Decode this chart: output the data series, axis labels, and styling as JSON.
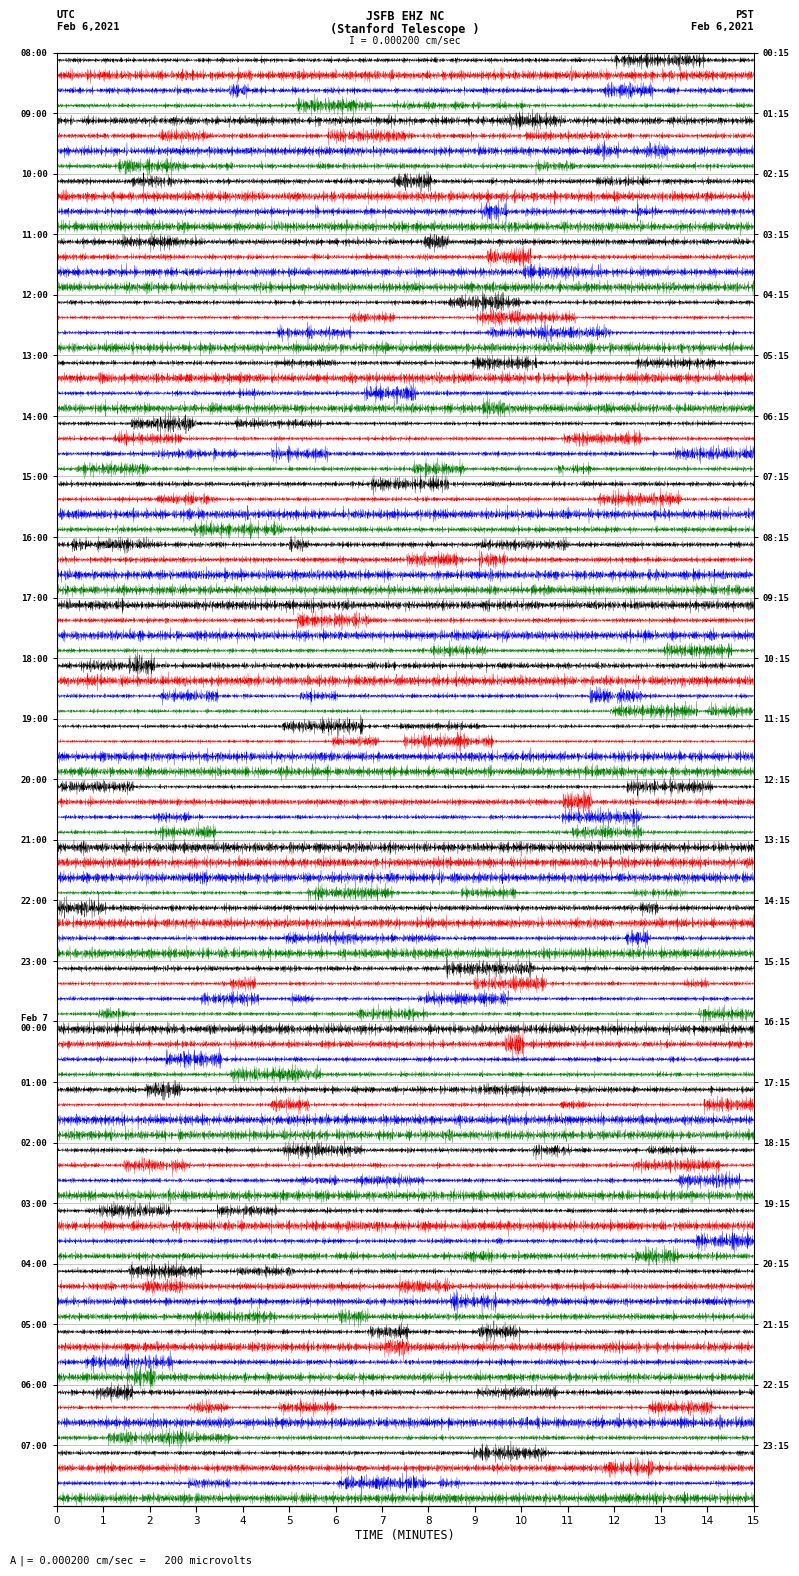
{
  "title_line1": "JSFB EHZ NC",
  "title_line2": "(Stanford Telescope )",
  "scale_bar_label": "I = 0.000200 cm/sec",
  "left_header": "UTC",
  "left_date": "Feb 6,2021",
  "right_header": "PST",
  "right_date": "Feb 6,2021",
  "xlabel": "TIME (MINUTES)",
  "bottom_note": "= 0.000200 cm/sec =   200 microvolts",
  "xmin": 0,
  "xmax": 15,
  "colors": [
    "black",
    "red",
    "blue",
    "green"
  ],
  "left_labels": [
    "08:00",
    "09:00",
    "10:00",
    "11:00",
    "12:00",
    "13:00",
    "14:00",
    "15:00",
    "16:00",
    "17:00",
    "18:00",
    "19:00",
    "20:00",
    "21:00",
    "22:00",
    "23:00",
    "Feb 7\n00:00",
    "01:00",
    "02:00",
    "03:00",
    "04:00",
    "05:00",
    "06:00",
    "07:00"
  ],
  "right_labels": [
    "00:15",
    "01:15",
    "02:15",
    "03:15",
    "04:15",
    "05:15",
    "06:15",
    "07:15",
    "08:15",
    "09:15",
    "10:15",
    "11:15",
    "12:15",
    "13:15",
    "14:15",
    "15:15",
    "16:15",
    "17:15",
    "18:15",
    "19:15",
    "20:15",
    "21:15",
    "22:15",
    "23:15"
  ],
  "num_rows": 24,
  "traces_per_row": 4,
  "bg_color": "white",
  "fig_width": 8.5,
  "fig_height": 16.13
}
